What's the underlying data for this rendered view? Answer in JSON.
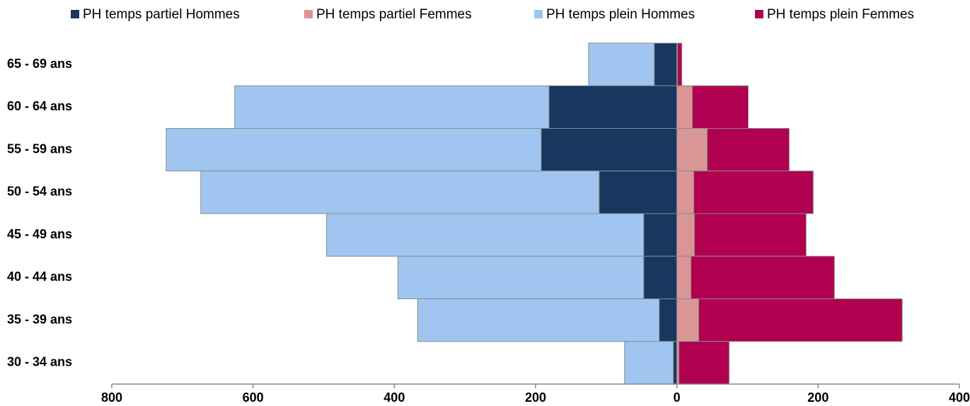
{
  "chart_data": {
    "type": "bar",
    "orientation": "horizontal",
    "stacked": true,
    "categories": [
      "65 - 69 ans",
      "60 - 64 ans",
      "55 - 59 ans",
      "50 - 54 ans",
      "45 - 49 ans",
      "40 - 44 ans",
      "35 - 39 ans",
      "30 - 34 ans"
    ],
    "series": [
      {
        "name": "PH temps partiel Hommes",
        "color": "#17375e",
        "values": [
          -32,
          -181,
          -192,
          -110,
          -47,
          -47,
          -25,
          -5
        ]
      },
      {
        "name": "PH temps partiel Femmes",
        "color": "#d99694",
        "values": [
          1,
          22,
          43,
          24,
          25,
          20,
          31,
          3
        ]
      },
      {
        "name": "PH temps plein Hommes",
        "color": "#a0c5f0",
        "values": [
          -93,
          -445,
          -531,
          -564,
          -449,
          -348,
          -342,
          -69
        ]
      },
      {
        "name": "PH temps plein Femmes",
        "color": "#b0004f",
        "values": [
          6,
          79,
          116,
          169,
          158,
          203,
          288,
          71
        ]
      }
    ],
    "xlim": [
      -800,
      400
    ],
    "xticks": [
      {
        "value": -800,
        "label": "800"
      },
      {
        "value": -600,
        "label": "600"
      },
      {
        "value": -400,
        "label": "400"
      },
      {
        "value": -200,
        "label": "200"
      },
      0,
      200,
      400
    ],
    "legend": "top"
  }
}
